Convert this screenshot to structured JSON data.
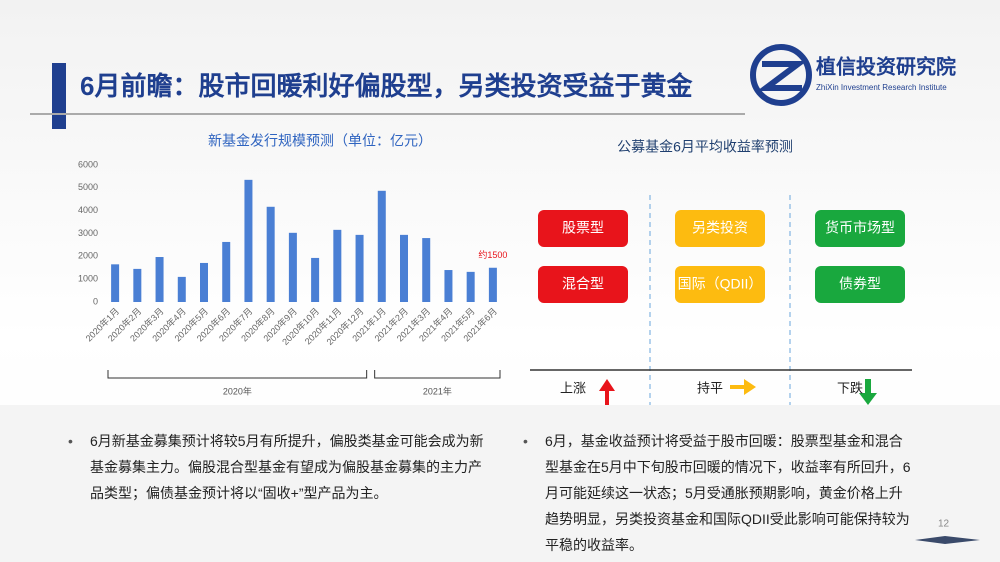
{
  "header": {
    "title": "6月前瞻：股市回暖利好偏股型，另类投资受益于黄金",
    "logo_name": "植信投资研究院",
    "logo_subtitle": "ZhiXin Investment Research Institute"
  },
  "chart_data": {
    "type": "bar",
    "title": "新基金发行规模预测（单位：亿元）",
    "categories": [
      "2020年1月",
      "2020年2月",
      "2020年3月",
      "2020年4月",
      "2020年5月",
      "2020年6月",
      "2020年7月",
      "2020年8月",
      "2020年9月",
      "2020年10月",
      "2020年11月",
      "2020年12月",
      "2021年1月",
      "2021年2月",
      "2021年3月",
      "2021年4月",
      "2021年5月",
      "2021年6月"
    ],
    "values": [
      1650,
      1450,
      1970,
      1100,
      1710,
      2630,
      5350,
      4170,
      3030,
      1930,
      3160,
      2940,
      4870,
      2940,
      2800,
      1400,
      1320,
      1500
    ],
    "value_labels": [
      null,
      null,
      null,
      null,
      null,
      null,
      null,
      null,
      null,
      null,
      null,
      null,
      null,
      null,
      null,
      null,
      null,
      "约1500"
    ],
    "color": "#4a7fd4",
    "ylim": [
      0,
      6000
    ],
    "yticks": [
      0,
      1000,
      2000,
      3000,
      4000,
      5000,
      6000
    ],
    "grid": false,
    "groups": [
      "2020年",
      "2021年"
    ]
  },
  "diagram": {
    "title": "公募基金6月平均收益率预测",
    "columns": [
      {
        "items": [
          "股票型",
          "混合型"
        ],
        "label": "上涨",
        "color": "#e8141b"
      },
      {
        "items": [
          "另类投资",
          "国际（QDII）"
        ],
        "label": "持平",
        "color": "#fdbb10"
      },
      {
        "items": [
          "货币市场型",
          "债券型"
        ],
        "label": "下跌",
        "color": "#19a83e"
      }
    ]
  },
  "bullets": [
    "6月新基金募集预计将较5月有所提升，偏股类基金可能会成为新基金募集主力。偏股混合型基金有望成为偏股基金募集的主力产品类型；偏债基金预计将以“固收+”型产品为主。",
    "6月，基金收益预计将受益于股市回暖：股票型基金和混合型基金在5月中下旬股市回暖的情况下，收益率有所回升，6月可能延续这一状态；5月受通胀预期影响，黄金价格上升趋势明显，另类投资基金和国际QDII受此影响可能保持较为平稳的收益率。"
  ],
  "page_number": "12"
}
